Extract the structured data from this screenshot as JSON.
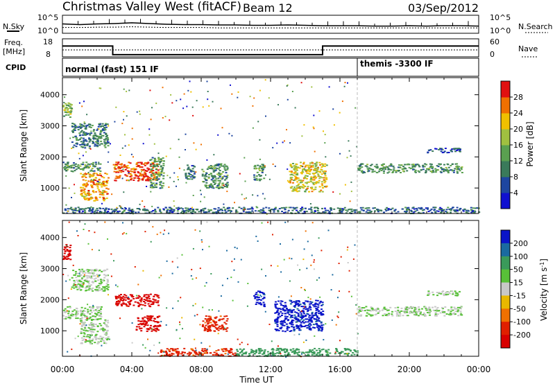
{
  "header": {
    "station": "Christmas Valley West (fitACF)",
    "beam": "Beam 12",
    "date": "03/Sep/2012"
  },
  "noise_panel": {
    "left_label": "N.Sky",
    "right_label": "N.Search",
    "left_ticks": [
      "10^5",
      "10^0"
    ],
    "right_ticks": [
      "10^5",
      "10^0"
    ]
  },
  "freq_panel": {
    "left_label_line1": "Freq.",
    "left_label_line2": "[MHz]",
    "right_label": "Nave",
    "left_ticks": [
      "18",
      "8"
    ],
    "right_ticks": [
      "60",
      "0"
    ]
  },
  "cpid": {
    "label": "CPID",
    "modes": [
      {
        "name": "normal (fast) 151 IF",
        "start_hour": 0
      },
      {
        "name": "themis -3300 IF",
        "start_hour": 17
      }
    ]
  },
  "axes": {
    "x_label": "Time UT",
    "x_ticks": [
      "00:00",
      "04:00",
      "08:00",
      "12:00",
      "16:00",
      "20:00",
      "00:00"
    ],
    "y_label": "Slant Range [km]",
    "y_ticks": [
      "1000",
      "2000",
      "3000",
      "4000"
    ]
  },
  "colorbars": {
    "power": {
      "label": "Power [dB]",
      "ticks": [
        "4",
        "8",
        "12",
        "16",
        "20",
        "24",
        "28"
      ],
      "colors": [
        "#1010d0",
        "#1e46a0",
        "#3a7a5a",
        "#5aa050",
        "#a0c040",
        "#f0c000",
        "#f07000",
        "#e01010"
      ]
    },
    "velocity": {
      "label": "Velocity [m s",
      "label_sup": "-1",
      "label_end": "]",
      "ticks": [
        "200",
        "100",
        "50",
        "15",
        "-15",
        "-50",
        "-100",
        "-200"
      ],
      "colors": [
        "#0a14c8",
        "#1a6aa0",
        "#3a9a5a",
        "#58c038",
        "#c8c8c8",
        "#e8b800",
        "#f07000",
        "#e02000",
        "#d80000"
      ]
    }
  },
  "chart_data": [
    {
      "type": "line",
      "title": "N.Sky / N.Search",
      "x": [
        0,
        1,
        2,
        3,
        4,
        5,
        6,
        7,
        8,
        9,
        10,
        11,
        12,
        13,
        14,
        15,
        16,
        17,
        18,
        19,
        20,
        21,
        22,
        23,
        24
      ],
      "series": [
        {
          "name": "N.Sky",
          "values": [
            2.6,
            2.4,
            2.6,
            2.7,
            2.9,
            2.7,
            2.5,
            2.4,
            2.4,
            2.3,
            2.3,
            2.2,
            2.2,
            2.3,
            2.2,
            2.1,
            2.1,
            2.1,
            2.0,
            2.0,
            2.1,
            2.0,
            2.1,
            2.1,
            2.0
          ]
        },
        {
          "name": "N.Search",
          "values": [
            1.6,
            1.6,
            1.7,
            1.7,
            1.8,
            1.7,
            1.6,
            1.6,
            1.6,
            1.5,
            1.5,
            1.5,
            1.5,
            1.5,
            1.5,
            1.5,
            1.5,
            1.5,
            1.5,
            1.5,
            1.5,
            1.5,
            1.5,
            1.5,
            1.5
          ]
        }
      ],
      "ylim": [
        0,
        5
      ]
    },
    {
      "type": "line",
      "title": "Freq. [MHz] / Nave",
      "x": [
        0,
        2.9,
        2.9,
        15,
        15,
        24
      ],
      "series": [
        {
          "name": "Freq. [MHz]",
          "values": [
            14.0,
            14.0,
            9.2,
            9.2,
            14.0,
            14.0
          ]
        },
        {
          "name": "Nave",
          "values": [
            23,
            23,
            23,
            23,
            23,
            23
          ]
        }
      ],
      "ylim": [
        8,
        18
      ]
    },
    {
      "type": "heatmap",
      "title": "Power [dB]",
      "x_range_hours": [
        0,
        24
      ],
      "ylim": [
        180,
        4550
      ],
      "features": [
        {
          "x0": 0.0,
          "x1": 0.5,
          "y0": 3300,
          "y1": 3800,
          "value": 16
        },
        {
          "x0": 0.5,
          "x1": 2.6,
          "y0": 2300,
          "y1": 3100,
          "value": 10
        },
        {
          "x0": 0.0,
          "x1": 2.2,
          "y0": 1550,
          "y1": 1850,
          "value": 12
        },
        {
          "x0": 1.0,
          "x1": 2.6,
          "y0": 600,
          "y1": 1500,
          "value": 24
        },
        {
          "x0": 2.9,
          "x1": 5.5,
          "y0": 1250,
          "y1": 1850,
          "value": 28
        },
        {
          "x0": 5.0,
          "x1": 5.8,
          "y0": 1000,
          "y1": 2000,
          "value": 12
        },
        {
          "x0": 7.0,
          "x1": 7.6,
          "y0": 1300,
          "y1": 1800,
          "value": 10
        },
        {
          "x0": 8.0,
          "x1": 9.5,
          "y0": 1000,
          "y1": 1800,
          "value": 12
        },
        {
          "x0": 11.0,
          "x1": 11.6,
          "y0": 1250,
          "y1": 1800,
          "value": 12
        },
        {
          "x0": 13.0,
          "x1": 15.2,
          "y0": 900,
          "y1": 1850,
          "value": 20
        },
        {
          "x0": 17.0,
          "x1": 23.0,
          "y0": 1500,
          "y1": 1800,
          "value": 12
        },
        {
          "x0": 21.0,
          "x1": 23.0,
          "y0": 2150,
          "y1": 2300,
          "value": 6
        },
        {
          "x0": 0.0,
          "x1": 24.0,
          "y0": 200,
          "y1": 400,
          "value": 8
        }
      ]
    },
    {
      "type": "heatmap",
      "title": "Velocity [m s-1]",
      "x_range_hours": [
        0,
        24
      ],
      "ylim": [
        180,
        4550
      ],
      "features": [
        {
          "x0": 0.0,
          "x1": 0.5,
          "y0": 3300,
          "y1": 3800,
          "value": -200
        },
        {
          "x0": 0.5,
          "x1": 2.6,
          "y0": 2300,
          "y1": 3000,
          "value": 0
        },
        {
          "x0": 0.0,
          "x1": 2.2,
          "y0": 1400,
          "y1": 1800,
          "value": 0
        },
        {
          "x0": 1.0,
          "x1": 2.6,
          "y0": 600,
          "y1": 1400,
          "value": 0
        },
        {
          "x0": 3.0,
          "x1": 5.5,
          "y0": 1800,
          "y1": 2200,
          "value": -200
        },
        {
          "x0": 4.2,
          "x1": 5.6,
          "y0": 1000,
          "y1": 1500,
          "value": -200
        },
        {
          "x0": 5.6,
          "x1": 10.0,
          "y0": 200,
          "y1": 450,
          "value": -100
        },
        {
          "x0": 10.0,
          "x1": 17.0,
          "y0": 200,
          "y1": 450,
          "value": 50
        },
        {
          "x0": 8.0,
          "x1": 9.5,
          "y0": 1000,
          "y1": 1500,
          "value": -100
        },
        {
          "x0": 11.0,
          "x1": 11.6,
          "y0": 1800,
          "y1": 2300,
          "value": 200
        },
        {
          "x0": 12.2,
          "x1": 15.0,
          "y0": 1000,
          "y1": 2000,
          "value": 200
        },
        {
          "x0": 17.0,
          "x1": 23.0,
          "y0": 1500,
          "y1": 1800,
          "value": 0
        },
        {
          "x0": 21.0,
          "x1": 23.0,
          "y0": 2150,
          "y1": 2300,
          "value": 0
        }
      ]
    }
  ]
}
